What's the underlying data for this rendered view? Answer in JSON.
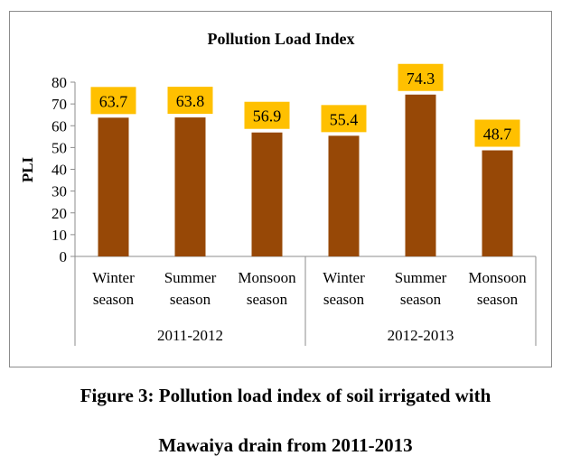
{
  "chart_data": {
    "type": "bar",
    "title": "Pollution Load Index",
    "ylabel": "PLI",
    "xlabel": "",
    "ylim": [
      0,
      80
    ],
    "yticks": [
      0,
      10,
      20,
      30,
      40,
      50,
      60,
      70,
      80
    ],
    "grid": false,
    "legend": "none",
    "bar_color": "#974806",
    "label_bg_color": "#FFC000",
    "categories": [
      [
        "Winter",
        "season"
      ],
      [
        "Summer",
        "season"
      ],
      [
        "Monsoon",
        "season"
      ],
      [
        "Winter",
        "season"
      ],
      [
        "Summer",
        "season"
      ],
      [
        "Monsoon",
        "season"
      ]
    ],
    "groups": [
      {
        "label": "2011-2012",
        "count": 3
      },
      {
        "label": "2012-2013",
        "count": 3
      }
    ],
    "values": [
      63.7,
      63.8,
      56.9,
      55.4,
      74.3,
      48.7
    ],
    "value_labels": [
      "63.7",
      "63.8",
      "56.9",
      "55.4",
      "74.3",
      "48.7"
    ]
  },
  "caption": {
    "line1": "Figure 3: Pollution load index of soil irrigated with",
    "line2": "Mawaiya drain from 2011-2013"
  }
}
